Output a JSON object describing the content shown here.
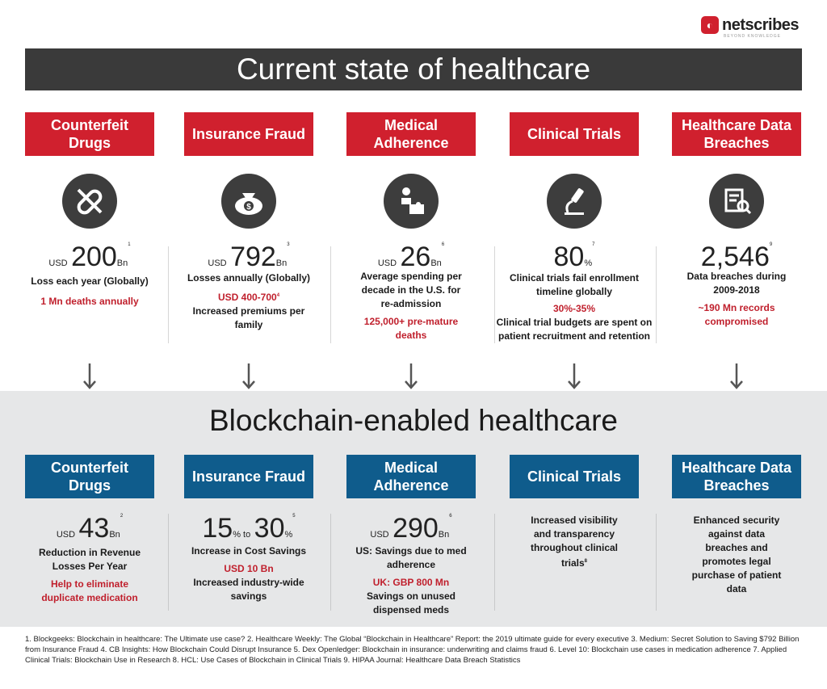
{
  "logo": {
    "name": "netscribes",
    "tagline": "BEYOND KNOWLEDGE"
  },
  "top": {
    "title": "Current state of healthcare",
    "columns": [
      {
        "heading": "Counterfeit Drugs",
        "icon": "pill-crossed-icon",
        "prefix": "USD",
        "value": "200",
        "unit": "Bn",
        "sup": "1",
        "line1": "Loss each year (Globally)",
        "red": "1 Mn deaths annually",
        "red_sup": "",
        "line2": ""
      },
      {
        "heading": "Insurance Fraud",
        "icon": "money-bag-icon",
        "prefix": "USD",
        "value": "792",
        "unit": "Bn",
        "sup": "3",
        "line1": "Losses annually (Globally)",
        "red": "USD 400-700",
        "red_sup": "4",
        "line2": "Increased premiums per family"
      },
      {
        "heading": "Medical Adherence",
        "icon": "puzzle-person-icon",
        "prefix": "USD",
        "value": "26",
        "unit": "Bn",
        "sup": "6",
        "line1": "Average spending per decade in the U.S. for re-admission",
        "red": "125,000+ pre-mature deaths",
        "red_sup": "",
        "line2": ""
      },
      {
        "heading": "Clinical Trials",
        "icon": "microscope-icon",
        "prefix": "",
        "value": "80",
        "unit": "%",
        "sup": "7",
        "line1": "Clinical trials fail enrollment timeline globally",
        "red": "30%-35%",
        "red_sup": "",
        "line2": "Clinical trial budgets are spent on patient recruitment and retention"
      },
      {
        "heading": "Healthcare Data Breaches",
        "icon": "document-search-icon",
        "prefix": "",
        "value": "2,546",
        "unit": "",
        "sup": "9",
        "line1": "Data breaches during 2009-2018",
        "red": "~190 Mn records compromised",
        "red_sup": "",
        "line2": ""
      }
    ]
  },
  "bottom": {
    "title": "Blockchain-enabled healthcare",
    "columns": [
      {
        "heading": "Counterfeit Drugs",
        "prefix": "USD",
        "value": "43",
        "unit": "Bn",
        "sup": "2",
        "line1": "Reduction in Revenue Losses Per Year",
        "red": "Help to eliminate duplicate medication",
        "line2": ""
      },
      {
        "heading": "Insurance Fraud",
        "value_a": "15",
        "unit_a": "% to",
        "value_b": "30",
        "unit_b": "%",
        "sup": "5",
        "line1": "Increase in Cost Savings",
        "red": "USD 10 Bn",
        "line2": "Increased industry-wide savings"
      },
      {
        "heading": "Medical Adherence",
        "prefix": "USD",
        "value": "290",
        "unit": "Bn",
        "sup": "6",
        "line1": "US: Savings due to med adherence",
        "red": "UK: GBP 800 Mn",
        "line2": "Savings on unused dispensed meds"
      },
      {
        "heading": "Clinical Trials",
        "line1": "Increased visibility and transparency throughout clinical trials",
        "sup": "8"
      },
      {
        "heading": "Healthcare Data Breaches",
        "line1": "Enhanced security against data breaches and promotes legal purchase of patient data"
      }
    ]
  },
  "references": "1. Blockgeeks: Blockchain in healthcare: The Ultimate use case? 2. Healthcare Weekly: The Global “Blockchain in Healthcare” Report: the 2019 ultimate guide for every executive 3. Medium: Secret Solution to Saving $792 Billion from Insurance Fraud 4. CB Insights: How Blockchain Could Disrupt Insurance 5. Dex Openledger: Blockchain in insurance: underwriting and claims fraud 6. Level 10: Blockchain use cases in medication adherence 7. Applied Clinical Trials: Blockchain Use in Research 8. HCL: Use Cases of Blockchain in Clinical Trials 9. HIPAA Journal: Healthcare Data Breach Statistics",
  "colors": {
    "red": "#d0202e",
    "blue": "#0f5c8c",
    "dark": "#3a3a3a",
    "gray_bg": "#e6e7e8"
  }
}
